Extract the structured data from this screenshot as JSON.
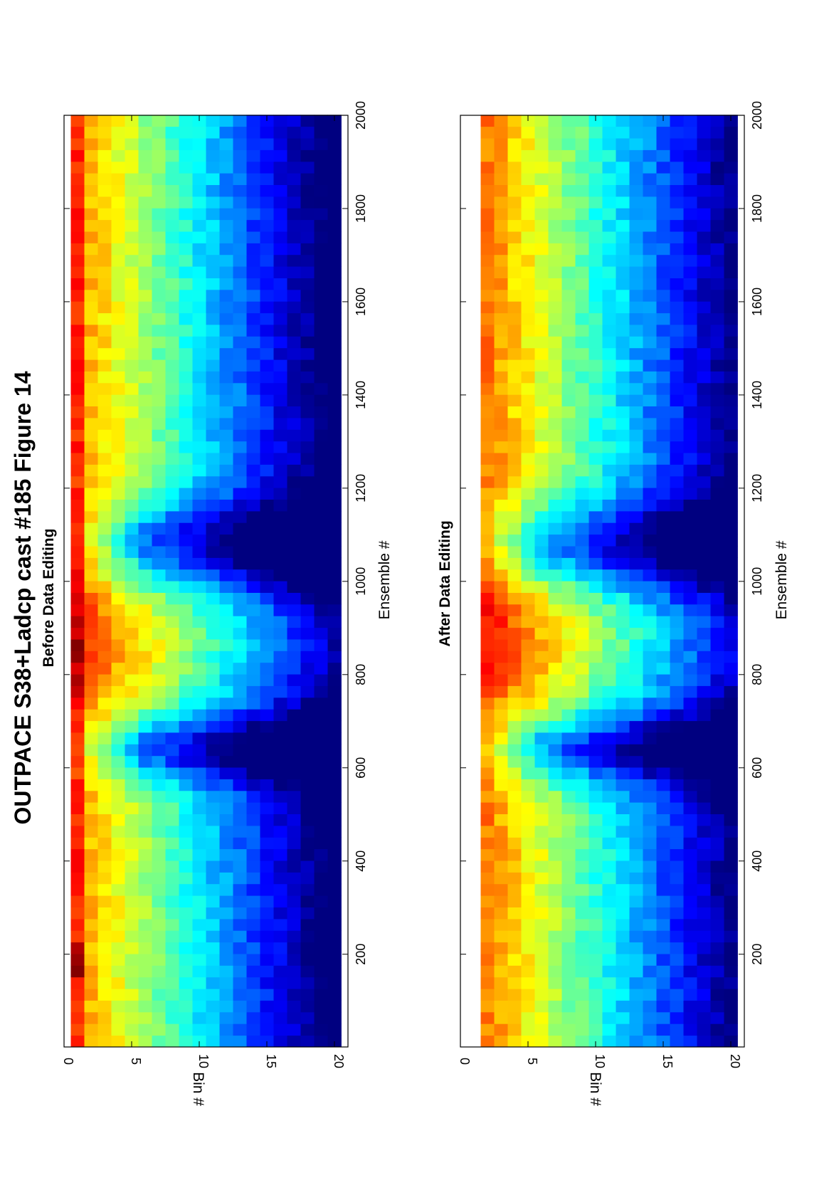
{
  "title": "OUTPACE S38+Ladcp cast #185  Figure 14",
  "chart_data": [
    {
      "type": "heatmap",
      "title": "Before Data Editing",
      "xlabel": "Ensemble #",
      "ylabel": "Bin #",
      "xlim": [
        1,
        2000
      ],
      "ylim": [
        0,
        21
      ],
      "xticks": [
        "200",
        "400",
        "600",
        "800",
        "1000",
        "1200",
        "1400",
        "1600",
        "1800",
        "2000"
      ],
      "yticks": [
        "0",
        "5",
        "10",
        "15",
        "20"
      ],
      "colormap": "jet",
      "grid": false,
      "edited": false
    },
    {
      "type": "heatmap",
      "title": "After Data Editing",
      "xlabel": "Ensemble #",
      "ylabel": "Bin #",
      "xlim": [
        1,
        2000
      ],
      "ylim": [
        0,
        21
      ],
      "xticks": [
        "200",
        "400",
        "600",
        "800",
        "1000",
        "1200",
        "1400",
        "1600",
        "1800",
        "2000"
      ],
      "yticks": [
        "0",
        "5",
        "10",
        "15",
        "20"
      ],
      "colormap": "jet",
      "grid": false,
      "edited": true
    }
  ]
}
